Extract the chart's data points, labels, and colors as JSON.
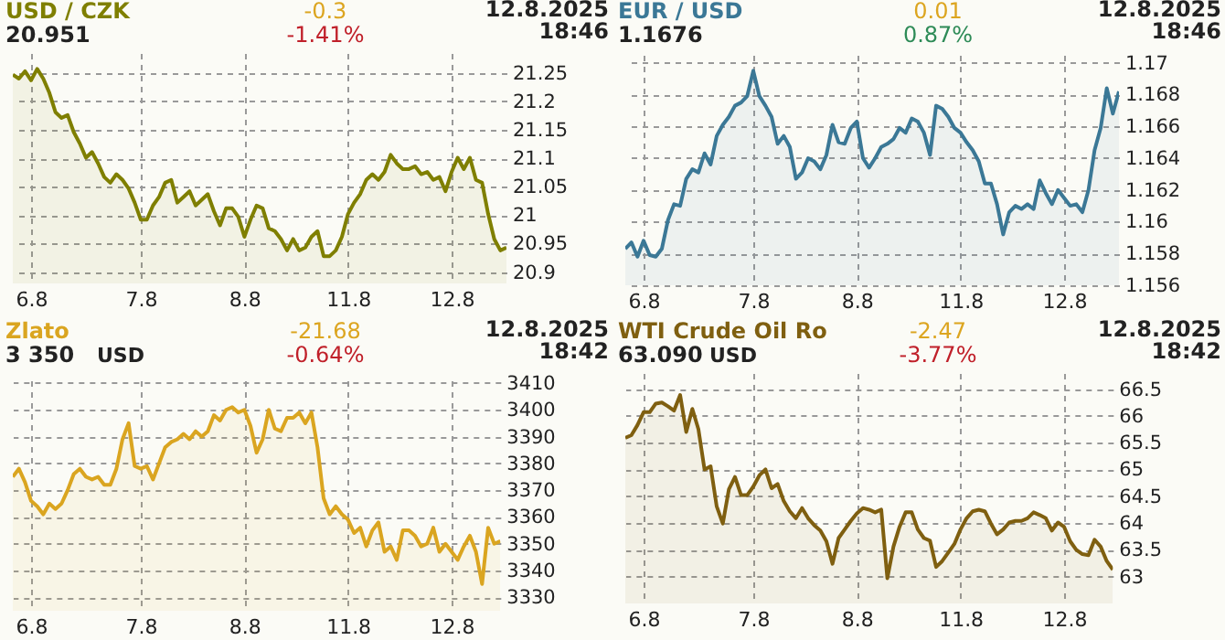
{
  "chart_data": [
    {
      "type": "area",
      "title": "USD / CZK",
      "subtitle": "20.951",
      "annotations": [
        "-0.3",
        "-1.41%",
        "12.8.2025",
        "18:46"
      ],
      "ylim": [
        20.88,
        21.285
      ],
      "yticks": [
        20.9,
        20.95,
        21,
        21.05,
        21.1,
        21.15,
        21.2,
        21.25
      ],
      "grid": true,
      "categories": [
        null,
        null,
        null,
        "6.8",
        null,
        null,
        null,
        null,
        null,
        null,
        null,
        null,
        null,
        null,
        null,
        null,
        null,
        null,
        null,
        null,
        null,
        "7.8",
        null,
        null,
        null,
        null,
        null,
        null,
        null,
        null,
        null,
        null,
        null,
        null,
        null,
        null,
        null,
        null,
        "8.8",
        null,
        null,
        null,
        null,
        null,
        null,
        null,
        null,
        null,
        null,
        null,
        null,
        null,
        null,
        null,
        null,
        "11.8",
        null,
        null,
        null,
        null,
        null,
        null,
        null,
        null,
        null,
        null,
        null,
        null,
        null,
        null,
        null,
        null,
        "12.8",
        null,
        null,
        null,
        null,
        null,
        null,
        null,
        null,
        null
      ],
      "series": [
        {
          "color": "#7f7f00",
          "values": [
            21.247,
            21.24,
            21.253,
            21.237,
            21.257,
            21.24,
            21.215,
            21.181,
            21.171,
            21.176,
            21.146,
            21.126,
            21.101,
            21.111,
            21.091,
            21.067,
            21.057,
            21.072,
            21.062,
            21.047,
            21.022,
            20.992,
            20.992,
            21.017,
            21.032,
            21.057,
            21.062,
            21.022,
            21.032,
            21.042,
            21.017,
            21.027,
            21.037,
            21.007,
            20.982,
            21.012,
            21.012,
            20.997,
            20.962,
            20.992,
            21.017,
            21.012,
            20.977,
            20.972,
            20.958,
            20.938,
            20.958,
            20.938,
            20.943,
            20.962,
            20.972,
            20.928,
            20.928,
            20.938,
            20.962,
            21.002,
            21.022,
            21.037,
            21.062,
            21.072,
            21.062,
            21.076,
            21.106,
            21.091,
            21.081,
            21.081,
            21.086,
            21.072,
            21.076,
            21.062,
            21.067,
            21.042,
            21.076,
            21.101,
            21.081,
            21.101,
            21.062,
            21.057,
            21.002,
            20.958,
            20.938,
            20.943
          ]
        }
      ]
    },
    {
      "type": "area",
      "title": "EUR / USD",
      "subtitle": "1.1676",
      "annotations": [
        "0.01",
        "0.87%",
        "12.8.2025",
        "18:46"
      ],
      "ylim": [
        1.156,
        1.1705
      ],
      "yticks": [
        1.156,
        1.158,
        1.16,
        1.162,
        1.164,
        1.166,
        1.168,
        1.17
      ],
      "grid": true,
      "categories": [
        null,
        null,
        null,
        "6.8",
        null,
        null,
        null,
        null,
        null,
        null,
        null,
        null,
        null,
        null,
        null,
        null,
        null,
        null,
        null,
        null,
        null,
        "7.8",
        null,
        null,
        null,
        null,
        null,
        null,
        null,
        null,
        null,
        null,
        null,
        null,
        null,
        null,
        null,
        null,
        "8.8",
        null,
        null,
        null,
        null,
        null,
        null,
        null,
        null,
        null,
        null,
        null,
        null,
        null,
        null,
        null,
        null,
        "11.8",
        null,
        null,
        null,
        null,
        null,
        null,
        null,
        null,
        null,
        null,
        null,
        null,
        null,
        null,
        null,
        null,
        "12.8",
        null,
        null,
        null,
        null,
        null,
        null,
        null,
        null,
        null
      ],
      "series": [
        {
          "color": "#3b7896",
          "values": [
            1.1583,
            1.1587,
            1.1578,
            1.1588,
            1.1579,
            1.1578,
            1.1583,
            1.1601,
            1.1611,
            1.161,
            1.1627,
            1.1633,
            1.1631,
            1.1643,
            1.1636,
            1.1654,
            1.1661,
            1.1666,
            1.1673,
            1.1675,
            1.1679,
            1.1695,
            1.1679,
            1.1673,
            1.1666,
            1.1649,
            1.1654,
            1.1647,
            1.1627,
            1.1631,
            1.164,
            1.1638,
            1.1633,
            1.1642,
            1.1661,
            1.165,
            1.1649,
            1.1659,
            1.1663,
            1.164,
            1.1634,
            1.164,
            1.1647,
            1.1649,
            1.1652,
            1.1659,
            1.1656,
            1.1665,
            1.1663,
            1.1656,
            1.1642,
            1.1673,
            1.1671,
            1.1666,
            1.1659,
            1.1656,
            1.165,
            1.1645,
            1.1638,
            1.1624,
            1.1624,
            1.1611,
            1.1592,
            1.1606,
            1.161,
            1.1608,
            1.1611,
            1.1608,
            1.1626,
            1.1618,
            1.1611,
            1.162,
            1.1615,
            1.161,
            1.1611,
            1.1606,
            1.162,
            1.1645,
            1.1659,
            1.1684,
            1.1668,
            1.1682
          ]
        }
      ]
    },
    {
      "type": "area",
      "title": "Zlato",
      "subtitle": "3 350",
      "ylabel": "USD",
      "annotations": [
        "-21.68",
        "-0.64%",
        "12.8.2025",
        "18:42"
      ],
      "ylim": [
        3325,
        3411
      ],
      "yticks": [
        3330,
        3340,
        3350,
        3360,
        3370,
        3380,
        3390,
        3400,
        3410
      ],
      "grid": true,
      "categories": [
        null,
        null,
        null,
        "6.8",
        null,
        null,
        null,
        null,
        null,
        null,
        null,
        null,
        null,
        null,
        null,
        null,
        null,
        null,
        null,
        null,
        null,
        "7.8",
        null,
        null,
        null,
        null,
        null,
        null,
        null,
        null,
        null,
        null,
        null,
        null,
        null,
        null,
        null,
        null,
        "8.8",
        null,
        null,
        null,
        null,
        null,
        null,
        null,
        null,
        null,
        null,
        null,
        null,
        null,
        null,
        null,
        null,
        "11.8",
        null,
        null,
        null,
        null,
        null,
        null,
        null,
        null,
        null,
        null,
        null,
        null,
        null,
        null,
        null,
        null,
        "12.8",
        null,
        null,
        null,
        null,
        null,
        null,
        null,
        null
      ],
      "series": [
        {
          "color": "#daa520",
          "values": [
            3375,
            3378,
            3373,
            3366,
            3364,
            3361,
            3365,
            3363,
            3365,
            3370,
            3376,
            3378,
            3375,
            3374,
            3375,
            3372,
            3372,
            3378,
            3389,
            3395,
            3379,
            3378,
            3379,
            3374,
            3380,
            3386,
            3388,
            3389,
            3391,
            3389,
            3392,
            3390,
            3392,
            3398,
            3396,
            3400,
            3401,
            3399,
            3400,
            3394,
            3384,
            3389,
            3400,
            3393,
            3392,
            3397,
            3397,
            3399,
            3395,
            3399,
            3386,
            3367,
            3361,
            3364,
            3361,
            3359,
            3354,
            3356,
            3349,
            3355,
            3358,
            3347,
            3349,
            3344,
            3355,
            3355,
            3353,
            3349,
            3350,
            3356,
            3347,
            3350,
            3347,
            3344,
            3349,
            3353,
            3347,
            3335,
            3356,
            3350,
            3351
          ]
        }
      ]
    },
    {
      "type": "area",
      "title": "WTI Crude Oil Ro",
      "subtitle": "63.090",
      "ylabel": "USD",
      "annotations": [
        "-2.47",
        "-3.77%",
        "12.8.2025",
        "18:42"
      ],
      "ylim": [
        62.5,
        66.8
      ],
      "yticks": [
        63,
        63.5,
        64,
        64.5,
        65,
        65.5,
        66,
        66.5
      ],
      "grid": true,
      "categories": [
        null,
        null,
        null,
        "6.8",
        null,
        null,
        null,
        null,
        null,
        null,
        null,
        null,
        null,
        null,
        null,
        null,
        null,
        null,
        null,
        null,
        null,
        "7.8",
        null,
        null,
        null,
        null,
        null,
        null,
        null,
        null,
        null,
        null,
        null,
        null,
        null,
        null,
        null,
        null,
        "8.8",
        null,
        null,
        null,
        null,
        null,
        null,
        null,
        null,
        null,
        null,
        null,
        null,
        null,
        null,
        null,
        null,
        "11.8",
        null,
        null,
        null,
        null,
        null,
        null,
        null,
        null,
        null,
        null,
        null,
        null,
        null,
        null,
        null,
        null,
        "12.8",
        null,
        null,
        null,
        null,
        null,
        null,
        null,
        null
      ],
      "series": [
        {
          "color": "#7f5f10",
          "values": [
            65.59,
            65.64,
            65.83,
            66.07,
            66.07,
            66.23,
            66.25,
            66.18,
            66.1,
            66.39,
            65.7,
            66.13,
            65.75,
            65.0,
            65.06,
            64.31,
            63.99,
            64.63,
            64.86,
            64.52,
            64.52,
            64.68,
            64.89,
            65.0,
            64.65,
            64.73,
            64.41,
            64.22,
            64.09,
            64.28,
            64.09,
            63.96,
            63.86,
            63.66,
            63.24,
            63.72,
            63.88,
            64.04,
            64.18,
            64.28,
            64.25,
            64.2,
            64.25,
            62.97,
            63.56,
            63.93,
            64.2,
            64.2,
            63.88,
            63.72,
            63.67,
            63.18,
            63.29,
            63.45,
            63.61,
            63.88,
            64.09,
            64.22,
            64.25,
            64.22,
            63.99,
            63.79,
            63.88,
            64.01,
            64.04,
            64.04,
            64.09,
            64.2,
            64.15,
            64.09,
            63.86,
            64.01,
            63.93,
            63.66,
            63.5,
            63.42,
            63.4,
            63.69,
            63.56,
            63.29,
            63.13
          ]
        }
      ]
    }
  ]
}
